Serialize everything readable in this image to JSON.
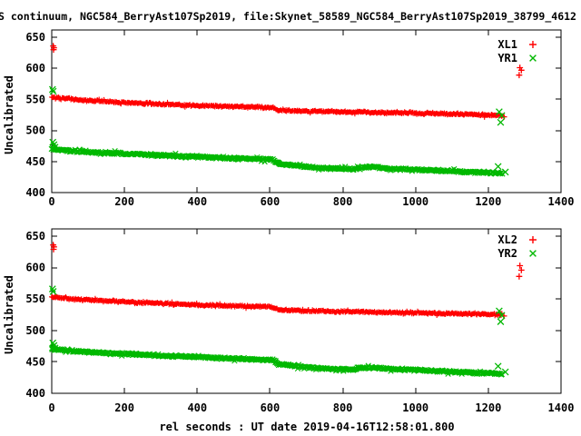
{
  "title": "S continuum, NGC584_BerryAst107Sp2019, file:Skynet_58589_NGC584_BerryAst107Sp2019_38799_4612",
  "xlabel": "rel seconds : UT date 2019-04-16T12:58:01.800",
  "colors": {
    "red": "#ff0000",
    "green": "#00b800",
    "axis": "#000000",
    "background": "#ffffff",
    "text": "#000000"
  },
  "chart_data": [
    {
      "type": "scatter",
      "panel": 1,
      "ylabel": "Uncalibrated",
      "xlim": [
        0,
        1400
      ],
      "ylim": [
        400,
        650
      ],
      "xticks": [
        0,
        200,
        400,
        600,
        800,
        1000,
        1200,
        1400
      ],
      "yticks": [
        400,
        450,
        500,
        550,
        600,
        650
      ],
      "grid": false,
      "legend_position": "top-right",
      "legend": [
        {
          "label": "XL1",
          "marker": "plus",
          "color": "#ff0000"
        },
        {
          "label": "YR1",
          "marker": "cross",
          "color": "#00b800"
        }
      ],
      "series": [
        {
          "name": "XL1",
          "marker": "plus",
          "color": "#ff0000",
          "trend": [
            [
              0,
              553
            ],
            [
              60,
              550
            ],
            [
              120,
              547.5
            ],
            [
              200,
              545
            ],
            [
              300,
              542.5
            ],
            [
              400,
              540
            ],
            [
              500,
              538.5
            ],
            [
              608,
              537
            ],
            [
              622,
              532.5
            ],
            [
              700,
              531
            ],
            [
              800,
              530
            ],
            [
              900,
              529
            ],
            [
              1000,
              528
            ],
            [
              1100,
              526.5
            ],
            [
              1200,
              525
            ],
            [
              1238,
              524.5
            ]
          ],
          "outliers": [
            [
              4,
              636
            ],
            [
              6,
              633
            ],
            [
              5,
              630
            ],
            [
              1287,
              601
            ],
            [
              1291,
              597
            ],
            [
              1285,
              589
            ],
            [
              1243,
              522
            ]
          ]
        },
        {
          "name": "YR1",
          "marker": "cross",
          "color": "#00b800",
          "trend": [
            [
              0,
              470
            ],
            [
              60,
              467
            ],
            [
              120,
              464.5
            ],
            [
              200,
              462.5
            ],
            [
              300,
              460
            ],
            [
              400,
              457.5
            ],
            [
              500,
              455.5
            ],
            [
              608,
              453
            ],
            [
              625,
              446.5
            ],
            [
              700,
              441.5
            ],
            [
              760,
              439
            ],
            [
              830,
              438
            ],
            [
              855,
              441
            ],
            [
              895,
              440.5
            ],
            [
              930,
              438.5
            ],
            [
              1000,
              437
            ],
            [
              1100,
              434.5
            ],
            [
              1200,
              432
            ],
            [
              1238,
              431
            ]
          ],
          "outliers": [
            [
              2,
              566
            ],
            [
              4,
              563
            ],
            [
              3,
              481
            ],
            [
              6,
              477
            ],
            [
              9,
              473
            ],
            [
              1230,
              530
            ],
            [
              1237,
              524
            ],
            [
              1234,
              513
            ],
            [
              1227,
              442
            ],
            [
              1247,
              433
            ]
          ]
        }
      ]
    },
    {
      "type": "scatter",
      "panel": 2,
      "ylabel": "Uncalibrated",
      "xlabel": "rel seconds : UT date 2019-04-16T12:58:01.800",
      "xlim": [
        0,
        1400
      ],
      "ylim": [
        400,
        650
      ],
      "xticks": [
        0,
        200,
        400,
        600,
        800,
        1000,
        1200,
        1400
      ],
      "yticks": [
        400,
        450,
        500,
        550,
        600,
        650
      ],
      "grid": false,
      "legend_position": "top-right",
      "legend": [
        {
          "label": "XL2",
          "marker": "plus",
          "color": "#ff0000"
        },
        {
          "label": "YR2",
          "marker": "cross",
          "color": "#00b800"
        }
      ],
      "series": [
        {
          "name": "XL2",
          "marker": "plus",
          "color": "#ff0000",
          "trend": [
            [
              0,
              553
            ],
            [
              60,
              550
            ],
            [
              120,
              548
            ],
            [
              200,
              545.5
            ],
            [
              300,
              543
            ],
            [
              400,
              540.5
            ],
            [
              500,
              539
            ],
            [
              608,
              537.5
            ],
            [
              622,
              533
            ],
            [
              700,
              531.5
            ],
            [
              800,
              530
            ],
            [
              900,
              529
            ],
            [
              1000,
              528
            ],
            [
              1100,
              527
            ],
            [
              1200,
              525.5
            ],
            [
              1238,
              525
            ]
          ],
          "outliers": [
            [
              4,
              636
            ],
            [
              6,
              633
            ],
            [
              5,
              629
            ],
            [
              1287,
              603
            ],
            [
              1291,
              596
            ],
            [
              1285,
              586
            ],
            [
              1243,
              523
            ]
          ]
        },
        {
          "name": "YR2",
          "marker": "cross",
          "color": "#00b800",
          "trend": [
            [
              0,
              470.5
            ],
            [
              60,
              467
            ],
            [
              120,
              465
            ],
            [
              200,
              462.5
            ],
            [
              300,
              460
            ],
            [
              400,
              458
            ],
            [
              500,
              455.5
            ],
            [
              608,
              453
            ],
            [
              625,
              446.5
            ],
            [
              700,
              441.5
            ],
            [
              760,
              439
            ],
            [
              830,
              438
            ],
            [
              855,
              441
            ],
            [
              895,
              440.5
            ],
            [
              930,
              438.5
            ],
            [
              1000,
              437
            ],
            [
              1100,
              434.5
            ],
            [
              1200,
              432
            ],
            [
              1238,
              431
            ]
          ],
          "outliers": [
            [
              2,
              566
            ],
            [
              4,
              562
            ],
            [
              3,
              480
            ],
            [
              6,
              476
            ],
            [
              9,
              472
            ],
            [
              1230,
              531
            ],
            [
              1237,
              524
            ],
            [
              1234,
              514
            ],
            [
              1227,
              443
            ],
            [
              1247,
              434
            ]
          ]
        }
      ]
    }
  ]
}
